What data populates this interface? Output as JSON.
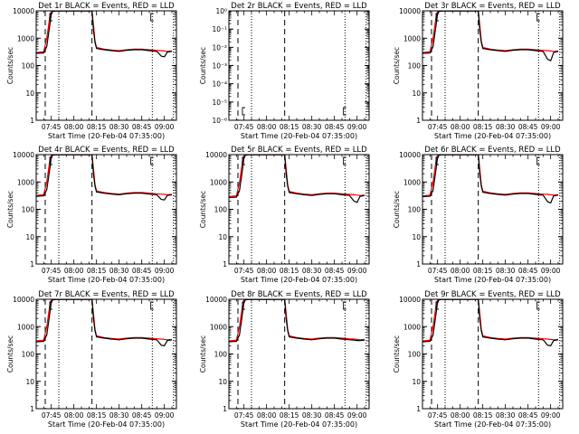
{
  "shared": {
    "xlabel": "Start Time (20-Feb-04 07:35:00)",
    "ylabel": "Counts/sec",
    "x_tick_labels": [
      "07:45",
      "08:00",
      "08:15",
      "08:30",
      "08:45",
      "09:00"
    ],
    "y_tick_labels_counts": [
      "1",
      "10",
      "100",
      "1000",
      "10000"
    ],
    "y_tick_labels_small": [
      "10⁻⁶",
      "10⁻⁵",
      "10⁻⁴",
      "10⁻³",
      "10⁻²",
      "10⁻¹",
      "10⁰"
    ],
    "colors": {
      "events": "#000000",
      "lld": "#ff0000",
      "axes": "#000000"
    }
  },
  "chart_data": [
    {
      "type": "line",
      "title": "Det 1r BLACK = Events, RED = LLD",
      "y_scale": "log",
      "ylim": [
        1,
        10000
      ],
      "x": [
        "07:35",
        "07:40",
        "07:42",
        "07:44",
        "07:45",
        "07:46",
        "07:48",
        "08:12",
        "08:13",
        "08:14",
        "08:15",
        "08:20",
        "08:25",
        "08:30",
        "08:35",
        "08:40",
        "08:45",
        "08:50",
        "08:55",
        "08:58",
        "09:00",
        "09:02",
        "09:05"
      ],
      "series": [
        {
          "name": "BLACK = Events",
          "values": [
            280,
            290,
            500,
            3000,
            8000,
            9500,
            9900,
            9900,
            2000,
            700,
            420,
            380,
            350,
            330,
            360,
            380,
            380,
            350,
            330,
            220,
            210,
            310,
            330
          ]
        },
        {
          "name": "RED = LLD",
          "values": [
            300,
            320,
            1000,
            6000,
            9800,
            9900,
            9900,
            9900,
            3000,
            800,
            460,
            400,
            370,
            350,
            380,
            400,
            400,
            380,
            360,
            350,
            340,
            330,
            340
          ]
        }
      ]
    },
    {
      "type": "line",
      "title": "Det 2r BLACK = Events, RED = LLD",
      "y_scale": "log",
      "ylim": [
        1e-06,
        1
      ],
      "x": [],
      "series": []
    },
    {
      "type": "line",
      "title": "Det 3r BLACK = Events, RED = LLD",
      "y_scale": "log",
      "ylim": [
        1,
        10000
      ],
      "x": [
        "07:35",
        "07:40",
        "07:42",
        "07:44",
        "07:45",
        "07:46",
        "07:48",
        "08:12",
        "08:13",
        "08:14",
        "08:15",
        "08:20",
        "08:25",
        "08:30",
        "08:35",
        "08:40",
        "08:45",
        "08:50",
        "08:55",
        "08:58",
        "09:00",
        "09:02",
        "09:05"
      ],
      "series": [
        {
          "name": "BLACK = Events",
          "values": [
            280,
            290,
            500,
            3000,
            8000,
            9500,
            9900,
            9900,
            2000,
            700,
            420,
            380,
            350,
            330,
            360,
            380,
            380,
            350,
            330,
            170,
            150,
            300,
            330
          ]
        },
        {
          "name": "RED = LLD",
          "values": [
            300,
            320,
            1000,
            6000,
            9800,
            9900,
            9900,
            9900,
            3000,
            800,
            460,
            400,
            370,
            350,
            380,
            400,
            400,
            380,
            360,
            350,
            340,
            330,
            340
          ]
        }
      ]
    },
    {
      "type": "line",
      "title": "Det 4r BLACK = Events, RED = LLD",
      "y_scale": "log",
      "ylim": [
        1,
        10000
      ],
      "x": [
        "07:35",
        "07:40",
        "07:42",
        "07:44",
        "07:45",
        "07:46",
        "07:48",
        "08:12",
        "08:13",
        "08:14",
        "08:15",
        "08:20",
        "08:25",
        "08:30",
        "08:35",
        "08:40",
        "08:45",
        "08:50",
        "08:55",
        "08:58",
        "09:00",
        "09:02",
        "09:05"
      ],
      "series": [
        {
          "name": "BLACK = Events",
          "values": [
            300,
            310,
            520,
            3000,
            8000,
            9500,
            9900,
            9900,
            2000,
            700,
            430,
            390,
            360,
            340,
            370,
            390,
            390,
            360,
            340,
            230,
            220,
            320,
            340
          ]
        },
        {
          "name": "RED = LLD",
          "values": [
            320,
            340,
            1000,
            6000,
            9800,
            9900,
            9900,
            9900,
            3000,
            800,
            470,
            410,
            380,
            360,
            390,
            410,
            410,
            390,
            370,
            360,
            350,
            340,
            350
          ]
        }
      ]
    },
    {
      "type": "line",
      "title": "Det 5r BLACK = Events, RED = LLD",
      "y_scale": "log",
      "ylim": [
        1,
        10000
      ],
      "x": [
        "07:35",
        "07:40",
        "07:42",
        "07:44",
        "07:45",
        "07:46",
        "07:48",
        "08:12",
        "08:13",
        "08:14",
        "08:15",
        "08:20",
        "08:25",
        "08:30",
        "08:35",
        "08:40",
        "08:45",
        "08:50",
        "08:55",
        "08:58",
        "09:00",
        "09:02",
        "09:05"
      ],
      "series": [
        {
          "name": "BLACK = Events",
          "values": [
            270,
            280,
            480,
            2800,
            7800,
            9500,
            9900,
            9900,
            2000,
            700,
            410,
            370,
            340,
            320,
            350,
            370,
            370,
            340,
            320,
            200,
            180,
            300,
            320
          ]
        },
        {
          "name": "RED = LLD",
          "values": [
            290,
            310,
            950,
            5800,
            9800,
            9900,
            9900,
            9900,
            3000,
            800,
            450,
            390,
            360,
            340,
            370,
            390,
            390,
            370,
            350,
            340,
            330,
            320,
            330
          ]
        }
      ]
    },
    {
      "type": "line",
      "title": "Det 6r BLACK = Events, RED = LLD",
      "y_scale": "log",
      "ylim": [
        1,
        10000
      ],
      "x": [
        "07:35",
        "07:40",
        "07:42",
        "07:44",
        "07:45",
        "07:46",
        "07:48",
        "08:12",
        "08:13",
        "08:14",
        "08:15",
        "08:20",
        "08:25",
        "08:30",
        "08:35",
        "08:40",
        "08:45",
        "08:50",
        "08:55",
        "08:58",
        "09:00",
        "09:02",
        "09:05"
      ],
      "series": [
        {
          "name": "BLACK = Events",
          "values": [
            290,
            300,
            500,
            3000,
            8000,
            9500,
            9900,
            9900,
            2000,
            700,
            420,
            380,
            350,
            330,
            360,
            380,
            380,
            350,
            330,
            190,
            170,
            310,
            330
          ]
        },
        {
          "name": "RED = LLD",
          "values": [
            310,
            330,
            1000,
            6000,
            9800,
            9900,
            9900,
            9900,
            3000,
            800,
            460,
            400,
            370,
            350,
            380,
            400,
            400,
            380,
            360,
            350,
            340,
            330,
            340
          ]
        }
      ]
    },
    {
      "type": "line",
      "title": "Det 7r BLACK = Events, RED = LLD",
      "y_scale": "log",
      "ylim": [
        1,
        10000
      ],
      "x": [
        "07:35",
        "07:40",
        "07:42",
        "07:44",
        "07:45",
        "07:46",
        "07:48",
        "08:12",
        "08:13",
        "08:14",
        "08:15",
        "08:20",
        "08:25",
        "08:30",
        "08:35",
        "08:40",
        "08:45",
        "08:50",
        "08:55",
        "08:58",
        "09:00",
        "09:02",
        "09:05"
      ],
      "series": [
        {
          "name": "BLACK = Events",
          "values": [
            280,
            290,
            500,
            3000,
            8000,
            9500,
            9900,
            9900,
            2000,
            700,
            420,
            380,
            350,
            330,
            360,
            380,
            380,
            350,
            330,
            210,
            200,
            310,
            330
          ]
        },
        {
          "name": "RED = LLD",
          "values": [
            300,
            320,
            1000,
            6000,
            9800,
            9900,
            9900,
            9900,
            3000,
            800,
            460,
            400,
            370,
            350,
            380,
            400,
            400,
            380,
            360,
            350,
            340,
            330,
            340
          ]
        }
      ]
    },
    {
      "type": "line",
      "title": "Det 8r BLACK = Events, RED = LLD",
      "y_scale": "log",
      "ylim": [
        1,
        10000
      ],
      "x": [
        "07:35",
        "07:40",
        "07:42",
        "07:44",
        "07:45",
        "07:46",
        "07:48",
        "08:12",
        "08:13",
        "08:14",
        "08:15",
        "08:20",
        "08:25",
        "08:30",
        "08:35",
        "08:40",
        "08:45",
        "08:50",
        "08:55",
        "08:58",
        "09:00",
        "09:02",
        "09:05"
      ],
      "series": [
        {
          "name": "BLACK = Events",
          "values": [
            280,
            290,
            500,
            3000,
            8000,
            9500,
            9900,
            9900,
            2000,
            700,
            420,
            380,
            350,
            330,
            360,
            380,
            380,
            350,
            330,
            320,
            310,
            310,
            320
          ]
        },
        {
          "name": "RED = LLD",
          "values": [
            300,
            320,
            1000,
            6000,
            9800,
            9900,
            9900,
            9900,
            3000,
            800,
            460,
            400,
            370,
            350,
            380,
            400,
            400,
            380,
            360,
            350,
            340,
            330,
            340
          ]
        }
      ]
    },
    {
      "type": "line",
      "title": "Det 9r BLACK = Events, RED = LLD",
      "y_scale": "log",
      "ylim": [
        1,
        10000
      ],
      "x": [
        "07:35",
        "07:40",
        "07:42",
        "07:44",
        "07:45",
        "07:46",
        "07:48",
        "08:12",
        "08:13",
        "08:14",
        "08:15",
        "08:20",
        "08:25",
        "08:30",
        "08:35",
        "08:40",
        "08:45",
        "08:50",
        "08:55",
        "08:58",
        "09:00",
        "09:02",
        "09:05"
      ],
      "series": [
        {
          "name": "BLACK = Events",
          "values": [
            280,
            290,
            500,
            3000,
            8000,
            9500,
            9900,
            9900,
            2000,
            700,
            420,
            380,
            350,
            330,
            360,
            380,
            380,
            350,
            330,
            210,
            200,
            310,
            330
          ]
        },
        {
          "name": "RED = LLD",
          "values": [
            300,
            320,
            1000,
            6000,
            9800,
            9900,
            9900,
            9900,
            3000,
            800,
            460,
            400,
            370,
            350,
            380,
            400,
            400,
            380,
            360,
            350,
            340,
            330,
            340
          ]
        }
      ]
    }
  ]
}
